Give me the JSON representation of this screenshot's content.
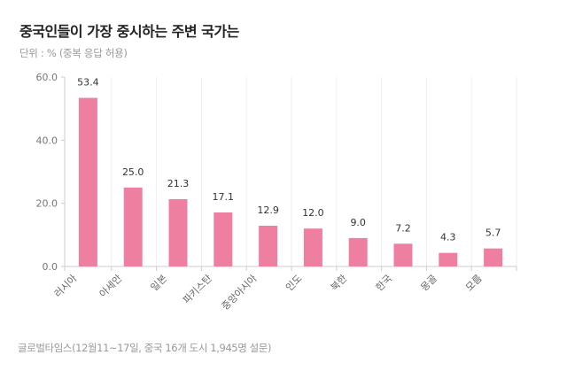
{
  "title": "중국인들이 가장 중시하는 주변 국가는",
  "subtitle": "단위 : % (중복 응답 허용)",
  "source": "글로벌타임스(12월11~17일, 중국 16개 도시 1,945명 설문)",
  "chart_data": {
    "type": "bar",
    "categories": [
      "러시아",
      "아세안",
      "일본",
      "파키스탄",
      "중앙아시아",
      "인도",
      "북한",
      "한국",
      "몽골",
      "모름"
    ],
    "values": [
      53.4,
      25.0,
      21.3,
      17.1,
      12.9,
      12.0,
      9.0,
      7.2,
      4.3,
      5.7
    ],
    "value_labels": [
      "53.4",
      "25.0",
      "21.3",
      "17.1",
      "12.9",
      "12.0",
      "9.0",
      "7.2",
      "4.3",
      "5.7"
    ],
    "yticks": [
      "0.0",
      "20.0",
      "40.0",
      "60.0"
    ],
    "ylim": [
      0,
      60
    ],
    "grid": "vertical",
    "bar_color": "#ef7fa0"
  }
}
